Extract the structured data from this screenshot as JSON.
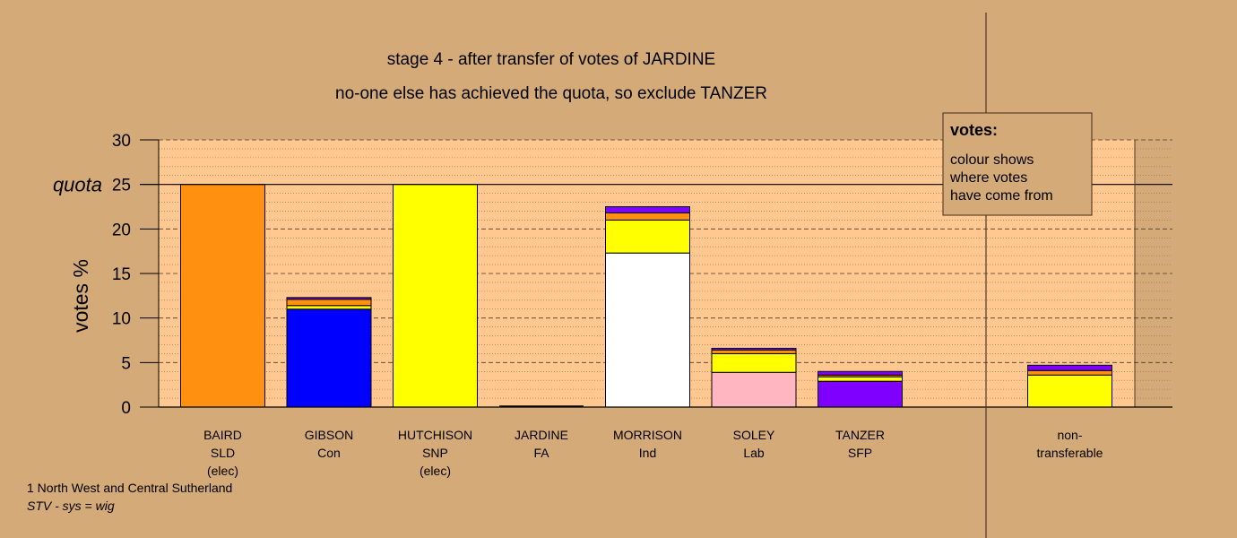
{
  "chart_data": {
    "type": "bar",
    "stacked": true,
    "title_lines": [
      "stage 4 - after transfer of votes of JARDINE",
      "no-one else has achieved the quota, so exclude TANZER"
    ],
    "ylabel": "votes %",
    "ylim": [
      0,
      30
    ],
    "yticks": [
      0,
      5,
      10,
      15,
      20,
      25,
      30
    ],
    "quota": {
      "label": "quota",
      "value": 25
    },
    "categories": [
      {
        "lines": [
          "BAIRD",
          "SLD",
          "(elec)"
        ],
        "segments": [
          {
            "color": "#ff9010",
            "value": 25.0
          }
        ]
      },
      {
        "lines": [
          "GIBSON",
          "Con"
        ],
        "segments": [
          {
            "color": "#0000ff",
            "value": 11.0
          },
          {
            "color": "#ffff00",
            "value": 0.4
          },
          {
            "color": "#ff9010",
            "value": 0.7
          },
          {
            "color": "#8000ff",
            "value": 0.2
          }
        ]
      },
      {
        "lines": [
          "HUTCHISON",
          "SNP",
          "(elec)"
        ],
        "segments": [
          {
            "color": "#ffff00",
            "value": 25.0
          }
        ]
      },
      {
        "lines": [
          "JARDINE",
          "FA"
        ],
        "segments": []
      },
      {
        "lines": [
          "MORRISON",
          "Ind"
        ],
        "segments": [
          {
            "color": "#ffffff",
            "value": 17.3
          },
          {
            "color": "#ffff00",
            "value": 3.7
          },
          {
            "color": "#ff9010",
            "value": 0.8
          },
          {
            "color": "#8000ff",
            "value": 0.7
          }
        ]
      },
      {
        "lines": [
          "SOLEY",
          "Lab"
        ],
        "segments": [
          {
            "color": "#ffb6c1",
            "value": 3.9
          },
          {
            "color": "#ffff00",
            "value": 2.1
          },
          {
            "color": "#ff9010",
            "value": 0.4
          },
          {
            "color": "#8000ff",
            "value": 0.2
          }
        ]
      },
      {
        "lines": [
          "TANZER",
          "SFP"
        ],
        "segments": [
          {
            "color": "#8000ff",
            "value": 2.9
          },
          {
            "color": "#ffff00",
            "value": 0.5
          },
          {
            "color": "#ff9010",
            "value": 0.2
          },
          {
            "color": "#8000ff",
            "value": 0.4
          }
        ]
      }
    ],
    "non_transferable": {
      "lines": [
        "non-",
        "transferable"
      ],
      "segments": [
        {
          "color": "#ffff00",
          "value": 3.6
        },
        {
          "color": "#ff9010",
          "value": 0.5
        },
        {
          "color": "#8000ff",
          "value": 0.6
        }
      ]
    },
    "legend": {
      "title": "votes:",
      "lines": [
        "colour shows",
        "where votes",
        "have come from"
      ]
    },
    "colors": {
      "background": "#d4aa78",
      "plot_background": "#ffc890",
      "legend_background": "#d4aa78"
    },
    "grid": true,
    "legend_placement": "top-right"
  },
  "footer": {
    "line1": "1 North West and Central Sutherland",
    "line2": "STV - sys = wig"
  }
}
